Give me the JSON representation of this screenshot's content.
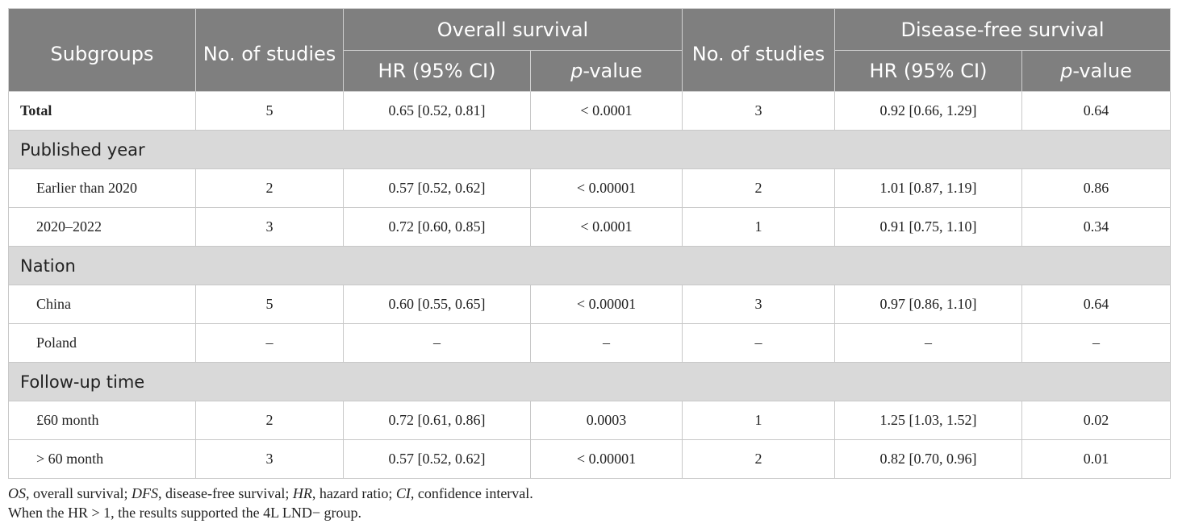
{
  "header": {
    "subgroups": "Subgroups",
    "no_of_studies_os": "No. of studies",
    "overall_survival": "Overall survival",
    "no_of_studies_dfs": "No. of studies",
    "disease_free_survival": "Disease-free survival",
    "hr_os": "HR (95% CI)",
    "p_os_italic": "p",
    "p_os_rest": "-value",
    "hr_dfs": "HR (95% CI)",
    "p_dfs_italic": "p",
    "p_dfs_rest": "-value"
  },
  "rows": [
    {
      "type": "total",
      "cells": [
        "Total",
        "5",
        "0.65 [0.52, 0.81]",
        "< 0.0001",
        "3",
        "0.92 [0.66, 1.29]",
        "0.64"
      ]
    },
    {
      "type": "section",
      "label": "Published year"
    },
    {
      "type": "data",
      "cells": [
        "Earlier than 2020",
        "2",
        "0.57 [0.52, 0.62]",
        "< 0.00001",
        "2",
        "1.01 [0.87, 1.19]",
        "0.86"
      ]
    },
    {
      "type": "data",
      "cells": [
        "2020–2022",
        "3",
        "0.72 [0.60, 0.85]",
        "< 0.0001",
        "1",
        "0.91 [0.75, 1.10]",
        "0.34"
      ]
    },
    {
      "type": "section",
      "label": "Nation"
    },
    {
      "type": "data",
      "cells": [
        "China",
        "5",
        "0.60 [0.55, 0.65]",
        "< 0.00001",
        "3",
        "0.97 [0.86, 1.10]",
        "0.64"
      ]
    },
    {
      "type": "data",
      "cells": [
        "Poland",
        "–",
        "–",
        "–",
        "–",
        "–",
        "–"
      ]
    },
    {
      "type": "section",
      "label": "Follow-up time"
    },
    {
      "type": "data",
      "cells": [
        "£60 month",
        "2",
        "0.72 [0.61, 0.86]",
        "0.0003",
        "1",
        "1.25 [1.03, 1.52]",
        "0.02"
      ]
    },
    {
      "type": "data",
      "cells": [
        "> 60 month",
        "3",
        "0.57 [0.52, 0.62]",
        "< 0.00001",
        "2",
        "0.82 [0.70, 0.96]",
        "0.01"
      ]
    }
  ],
  "footnotes": {
    "line1": [
      {
        "t": "OS",
        "i": true
      },
      {
        "t": ", overall survival; ",
        "i": false
      },
      {
        "t": "DFS",
        "i": true
      },
      {
        "t": ", disease-free survival; ",
        "i": false
      },
      {
        "t": "HR",
        "i": true
      },
      {
        "t": ", hazard ratio; ",
        "i": false
      },
      {
        "t": "CI",
        "i": true
      },
      {
        "t": ", confidence interval.",
        "i": false
      }
    ],
    "line2": "When the HR > 1, the results supported the 4L LND− group."
  }
}
